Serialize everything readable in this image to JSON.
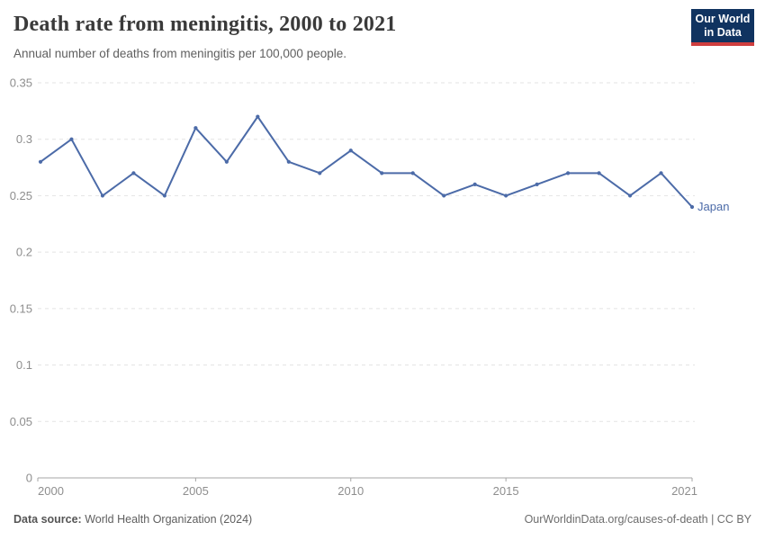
{
  "header": {
    "title": "Death rate from meningitis, 2000 to 2021",
    "subtitle": "Annual number of deaths from meningitis per 100,000 people.",
    "logo": {
      "line1": "Our World",
      "line2": "in Data",
      "bg_color": "#103360",
      "accent_color": "#cf3e3e"
    }
  },
  "footer": {
    "source_label": "Data source:",
    "source_value": " World Health Organization (2024)",
    "attribution": "OurWorldinData.org/causes-of-death | CC BY"
  },
  "chart_data": {
    "type": "line",
    "title": "Death rate from meningitis, 2000 to 2021",
    "subtitle": "Annual number of deaths from meningitis per 100,000 people.",
    "xlabel": "",
    "ylabel": "",
    "x": [
      2000,
      2001,
      2002,
      2003,
      2004,
      2005,
      2006,
      2007,
      2008,
      2009,
      2010,
      2011,
      2012,
      2013,
      2014,
      2015,
      2016,
      2017,
      2018,
      2019,
      2020,
      2021
    ],
    "series": [
      {
        "name": "Japan",
        "color": "#4c6ba8",
        "values": [
          0.28,
          0.3,
          0.25,
          0.27,
          0.25,
          0.31,
          0.28,
          0.32,
          0.28,
          0.27,
          0.29,
          0.27,
          0.27,
          0.25,
          0.26,
          0.25,
          0.26,
          0.27,
          0.27,
          0.25,
          0.27,
          0.24
        ]
      }
    ],
    "xlim": [
      2000,
      2021
    ],
    "ylim": [
      0,
      0.35
    ],
    "xticks": [
      2000,
      2005,
      2010,
      2015,
      2021
    ],
    "xtick_labels": [
      "2000",
      "2005",
      "2010",
      "2015",
      "2021"
    ],
    "yticks": [
      0,
      0.05,
      0.1,
      0.15,
      0.2,
      0.25,
      0.3,
      0.35
    ],
    "ytick_labels": [
      "0",
      "0.05",
      "0.1",
      "0.15",
      "0.2",
      "0.25",
      "0.3",
      "0.35"
    ],
    "grid": "horizontal-dashed",
    "legend_position": "end-of-line",
    "markers": true
  }
}
